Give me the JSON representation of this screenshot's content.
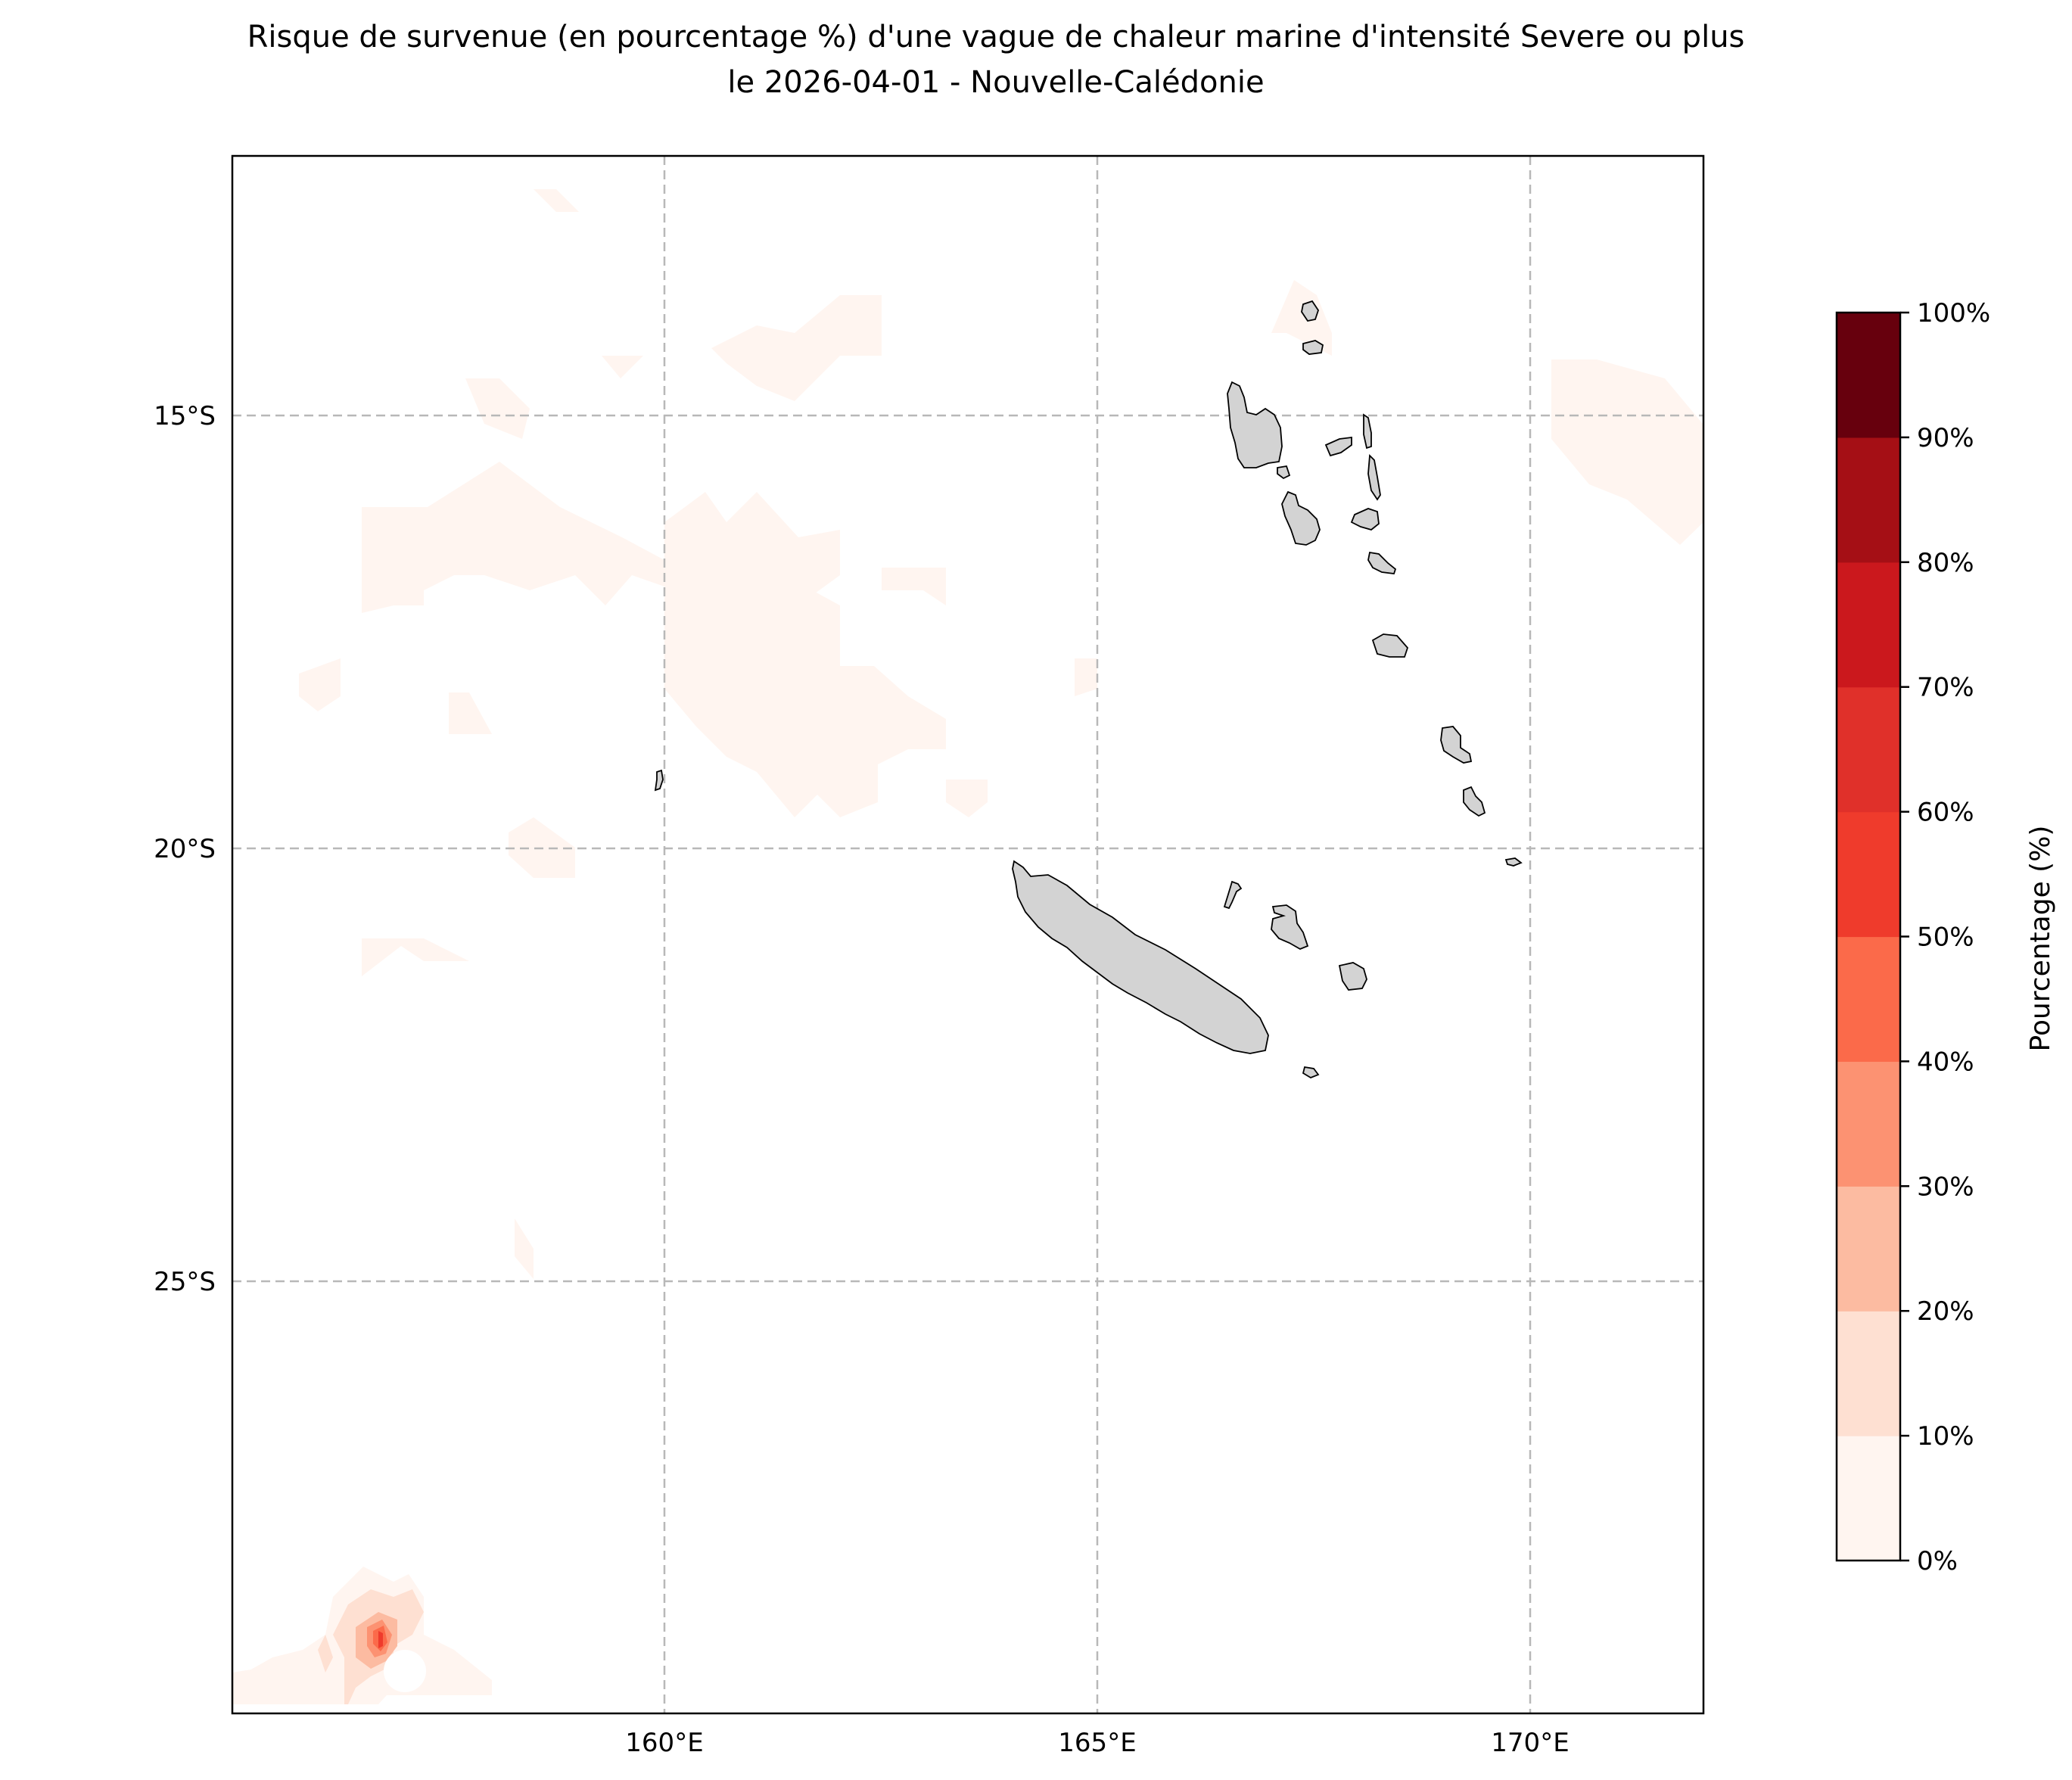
{
  "title": {
    "line1": "Risque de survenue (en pourcentage %) d'une vague de chaleur marine d'intensité Severe ou plus",
    "line2": "le 2026-04-01 - Nouvelle-Calédonie"
  },
  "map": {
    "lon_range": [
      155,
      172
    ],
    "lat_range": [
      -30,
      -12
    ],
    "x_ticks": [
      {
        "value": 160,
        "label": "160°E"
      },
      {
        "value": 165,
        "label": "165°E"
      },
      {
        "value": 170,
        "label": "170°E"
      }
    ],
    "y_ticks": [
      {
        "value": -15,
        "label": "15°S"
      },
      {
        "value": -20,
        "label": "20°S"
      },
      {
        "value": -25,
        "label": "25°S"
      }
    ],
    "grid": true,
    "land_color": "#d3d3d3"
  },
  "colorbar": {
    "title": "Pourcentage (%)",
    "levels": [
      {
        "label": "0%",
        "value": 0,
        "color": "#fff5f0"
      },
      {
        "label": "10%",
        "value": 10,
        "color": "#fee0d2"
      },
      {
        "label": "20%",
        "value": 20,
        "color": "#fcbba1"
      },
      {
        "label": "30%",
        "value": 30,
        "color": "#fc9272"
      },
      {
        "label": "40%",
        "value": 40,
        "color": "#fb6a4a"
      },
      {
        "label": "50%",
        "value": 50,
        "color": "#ef3b2c"
      },
      {
        "label": "60%",
        "value": 60,
        "color": "#e0302a"
      },
      {
        "label": "70%",
        "value": 70,
        "color": "#cb181d"
      },
      {
        "label": "80%",
        "value": 80,
        "color": "#a50f15"
      },
      {
        "label": "90%",
        "value": 90,
        "color": "#67000d"
      },
      {
        "label": "100%",
        "value": 100,
        "color": ""
      }
    ]
  }
}
